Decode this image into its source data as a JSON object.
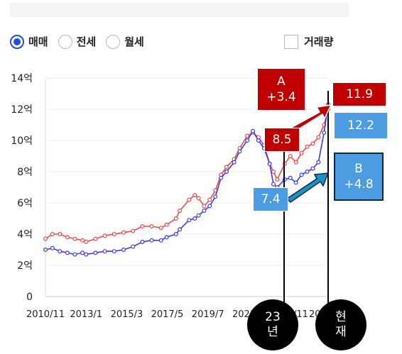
{
  "filters": {
    "options": [
      {
        "label": "매매",
        "selected": true
      },
      {
        "label": "전세",
        "selected": false
      },
      {
        "label": "월세",
        "selected": false
      }
    ],
    "volume_label": "거래량",
    "volume_checked": false
  },
  "colors": {
    "sale": "#f04a4a",
    "lease": "#3a3af0",
    "red_box": "#c00000",
    "blue_box": "#4d9be0",
    "radio": "#1f4fe0"
  },
  "chart_data": {
    "type": "line",
    "y_tick_labels": [
      "0",
      "2억",
      "4억",
      "6억",
      "8억",
      "10억",
      "12억",
      "14억"
    ],
    "y_ticks": [
      0,
      2,
      4,
      6,
      8,
      10,
      12,
      14
    ],
    "ylim": [
      0,
      14
    ],
    "x_tick_labels": [
      "2010/11",
      "2013/1",
      "2015/3",
      "2017/5",
      "2019/7",
      "2021/9",
      "2023/11",
      "2025/12"
    ],
    "x_ticks": [
      2010.83,
      2013.0,
      2015.17,
      2017.33,
      2019.5,
      2021.67,
      2023.83,
      2025.92
    ],
    "xlim": [
      2010.83,
      2025.92
    ],
    "series": [
      {
        "key": "red",
        "color": "#f04a4a",
        "points": [
          [
            2010.83,
            3.7
          ],
          [
            2011.2,
            4.0
          ],
          [
            2011.6,
            4.0
          ],
          [
            2012.0,
            3.8
          ],
          [
            2012.4,
            3.7
          ],
          [
            2012.8,
            3.6
          ],
          [
            2013.0,
            3.5
          ],
          [
            2013.5,
            3.7
          ],
          [
            2014.0,
            3.9
          ],
          [
            2014.5,
            4.0
          ],
          [
            2015.0,
            4.1
          ],
          [
            2015.5,
            4.2
          ],
          [
            2016.0,
            4.5
          ],
          [
            2016.5,
            4.5
          ],
          [
            2017.0,
            4.4
          ],
          [
            2017.3,
            4.6
          ],
          [
            2017.8,
            5.0
          ],
          [
            2018.0,
            5.5
          ],
          [
            2018.5,
            6.2
          ],
          [
            2018.8,
            6.5
          ],
          [
            2019.0,
            6.3
          ],
          [
            2019.3,
            5.8
          ],
          [
            2019.6,
            6.2
          ],
          [
            2019.9,
            6.8
          ],
          [
            2020.2,
            7.8
          ],
          [
            2020.5,
            8.3
          ],
          [
            2020.9,
            8.8
          ],
          [
            2021.2,
            9.5
          ],
          [
            2021.6,
            10.3
          ],
          [
            2021.9,
            10.5
          ],
          [
            2022.2,
            10.2
          ],
          [
            2022.5,
            9.7
          ],
          [
            2022.8,
            8.5
          ],
          [
            2023.0,
            8.0
          ],
          [
            2023.2,
            7.5
          ],
          [
            2023.6,
            8.5
          ],
          [
            2023.9,
            9.0
          ],
          [
            2024.2,
            8.6
          ],
          [
            2024.5,
            9.2
          ],
          [
            2024.8,
            9.6
          ],
          [
            2025.1,
            9.8
          ],
          [
            2025.4,
            10.2
          ],
          [
            2025.7,
            11.0
          ],
          [
            2025.92,
            12.0
          ]
        ]
      },
      {
        "key": "blue",
        "color": "#3a3af0",
        "points": [
          [
            2010.83,
            3.0
          ],
          [
            2011.2,
            3.1
          ],
          [
            2011.6,
            2.9
          ],
          [
            2012.0,
            2.8
          ],
          [
            2012.4,
            2.7
          ],
          [
            2012.8,
            2.8
          ],
          [
            2013.0,
            2.7
          ],
          [
            2013.5,
            2.8
          ],
          [
            2014.0,
            2.9
          ],
          [
            2014.5,
            2.9
          ],
          [
            2015.0,
            3.0
          ],
          [
            2015.5,
            3.2
          ],
          [
            2016.0,
            3.5
          ],
          [
            2016.5,
            3.6
          ],
          [
            2017.0,
            3.6
          ],
          [
            2017.3,
            3.8
          ],
          [
            2017.8,
            4.0
          ],
          [
            2018.0,
            4.3
          ],
          [
            2018.5,
            4.9
          ],
          [
            2018.8,
            5.0
          ],
          [
            2019.0,
            5.2
          ],
          [
            2019.3,
            5.5
          ],
          [
            2019.6,
            5.8
          ],
          [
            2019.9,
            6.4
          ],
          [
            2020.2,
            7.6
          ],
          [
            2020.5,
            8.0
          ],
          [
            2020.9,
            8.6
          ],
          [
            2021.2,
            9.3
          ],
          [
            2021.6,
            10.0
          ],
          [
            2021.9,
            10.6
          ],
          [
            2022.2,
            10.0
          ],
          [
            2022.5,
            9.5
          ],
          [
            2022.8,
            8.5
          ],
          [
            2023.0,
            7.2
          ],
          [
            2023.2,
            7.0
          ],
          [
            2023.6,
            7.5
          ],
          [
            2023.9,
            7.6
          ],
          [
            2024.2,
            7.3
          ],
          [
            2024.5,
            7.8
          ],
          [
            2024.8,
            8.0
          ],
          [
            2025.1,
            8.2
          ],
          [
            2025.4,
            8.6
          ],
          [
            2025.7,
            10.5
          ],
          [
            2025.92,
            12.3
          ]
        ]
      }
    ]
  },
  "annotations": {
    "a_label": "A",
    "a_value": "+3.4",
    "b_label": "B",
    "b_value": "+4.8",
    "red_2023": "8.5",
    "blue_2023": "7.4",
    "red_now": "11.9",
    "blue_now": "12.2",
    "marker_2023": "23\n년",
    "marker_now": "현\n재"
  }
}
